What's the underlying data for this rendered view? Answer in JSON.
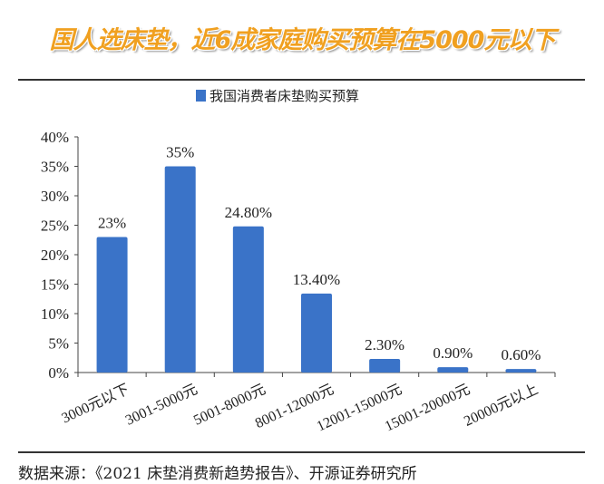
{
  "header": {
    "title": "国人选床垫，近6成家庭购买预算在5000元以下"
  },
  "footer": {
    "source": "数据来源：《2021 床垫消费新趋势报告》、开源证券研究所"
  },
  "chart_data": {
    "type": "bar",
    "title": "",
    "xlabel": "",
    "ylabel": "",
    "categories": [
      "3000元以下",
      "3001-5000元",
      "5001-8000元",
      "8001-12000元",
      "12001-15000元",
      "15001-20000元",
      "20000元以上"
    ],
    "series": [
      {
        "name": "我国消费者床垫购买预算",
        "values": [
          23,
          35,
          24.8,
          13.4,
          2.3,
          0.9,
          0.6
        ],
        "labels": [
          "23%",
          "35%",
          "24.80%",
          "13.40%",
          "2.30%",
          "0.90%",
          "0.60%"
        ],
        "color": "#3a73c8"
      }
    ],
    "ylim": [
      0,
      40
    ],
    "yticks": [
      "0%",
      "5%",
      "10%",
      "15%",
      "20%",
      "25%",
      "30%",
      "35%",
      "40%"
    ],
    "grid": false,
    "legend": "top"
  }
}
